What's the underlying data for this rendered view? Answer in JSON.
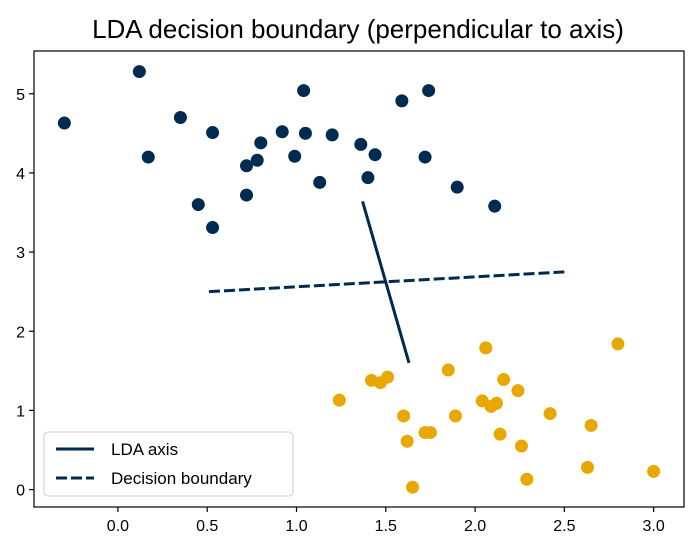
{
  "chart_data": {
    "type": "scatter",
    "title": "LDA decision boundary (perpendicular to axis)",
    "xlabel": "",
    "ylabel": "",
    "xlim": [
      -0.47,
      3.17
    ],
    "ylim": [
      -0.22,
      5.54
    ],
    "x_ticks": [
      0.0,
      0.5,
      1.0,
      1.5,
      2.0,
      2.5,
      3.0
    ],
    "x_tick_labels": [
      "0.0",
      "0.5",
      "1.0",
      "1.5",
      "2.0",
      "2.5",
      "3.0"
    ],
    "y_ticks": [
      0,
      1,
      2,
      3,
      4,
      5
    ],
    "y_tick_labels": [
      "0",
      "1",
      "2",
      "3",
      "4",
      "5"
    ],
    "grid": false,
    "legend_position": "lower-left",
    "series": [
      {
        "color": "#002b50",
        "points": [
          [
            -0.3,
            4.63
          ],
          [
            0.12,
            5.28
          ],
          [
            0.17,
            4.2
          ],
          [
            0.35,
            4.7
          ],
          [
            0.45,
            3.6
          ],
          [
            0.53,
            4.51
          ],
          [
            0.53,
            3.31
          ],
          [
            0.72,
            4.09
          ],
          [
            0.72,
            3.72
          ],
          [
            0.78,
            4.16
          ],
          [
            0.8,
            4.38
          ],
          [
            0.92,
            4.52
          ],
          [
            0.99,
            4.21
          ],
          [
            1.04,
            5.04
          ],
          [
            1.05,
            4.5
          ],
          [
            1.13,
            3.88
          ],
          [
            1.2,
            4.48
          ],
          [
            1.36,
            4.36
          ],
          [
            1.4,
            3.94
          ],
          [
            1.44,
            4.23
          ],
          [
            1.59,
            4.91
          ],
          [
            1.72,
            4.2
          ],
          [
            1.74,
            5.04
          ],
          [
            1.9,
            3.82
          ],
          [
            2.11,
            3.58
          ]
        ]
      },
      {
        "color": "#e8a800",
        "points": [
          [
            1.24,
            1.13
          ],
          [
            1.42,
            1.38
          ],
          [
            1.47,
            1.35
          ],
          [
            1.51,
            1.42
          ],
          [
            1.6,
            0.93
          ],
          [
            1.62,
            0.61
          ],
          [
            1.65,
            0.03
          ],
          [
            1.72,
            0.72
          ],
          [
            1.75,
            0.72
          ],
          [
            1.85,
            1.51
          ],
          [
            1.89,
            0.93
          ],
          [
            2.04,
            1.12
          ],
          [
            2.06,
            1.79
          ],
          [
            2.09,
            1.05
          ],
          [
            2.12,
            1.09
          ],
          [
            2.14,
            0.7
          ],
          [
            2.16,
            1.39
          ],
          [
            2.24,
            1.25
          ],
          [
            2.26,
            0.55
          ],
          [
            2.29,
            0.13
          ],
          [
            2.42,
            0.96
          ],
          [
            2.63,
            0.28
          ],
          [
            2.65,
            0.81
          ],
          [
            2.8,
            1.84
          ],
          [
            3.0,
            0.23
          ]
        ]
      }
    ],
    "lines": [
      {
        "name": "LDA axis",
        "style": "solid",
        "color": "#002b50",
        "x": [
          1.37,
          1.63
        ],
        "y": [
          3.64,
          1.6
        ]
      },
      {
        "name": "Decision boundary",
        "style": "dashed",
        "color": "#002b50",
        "x": [
          0.51,
          2.5
        ],
        "y": [
          2.5,
          2.75
        ]
      }
    ]
  }
}
